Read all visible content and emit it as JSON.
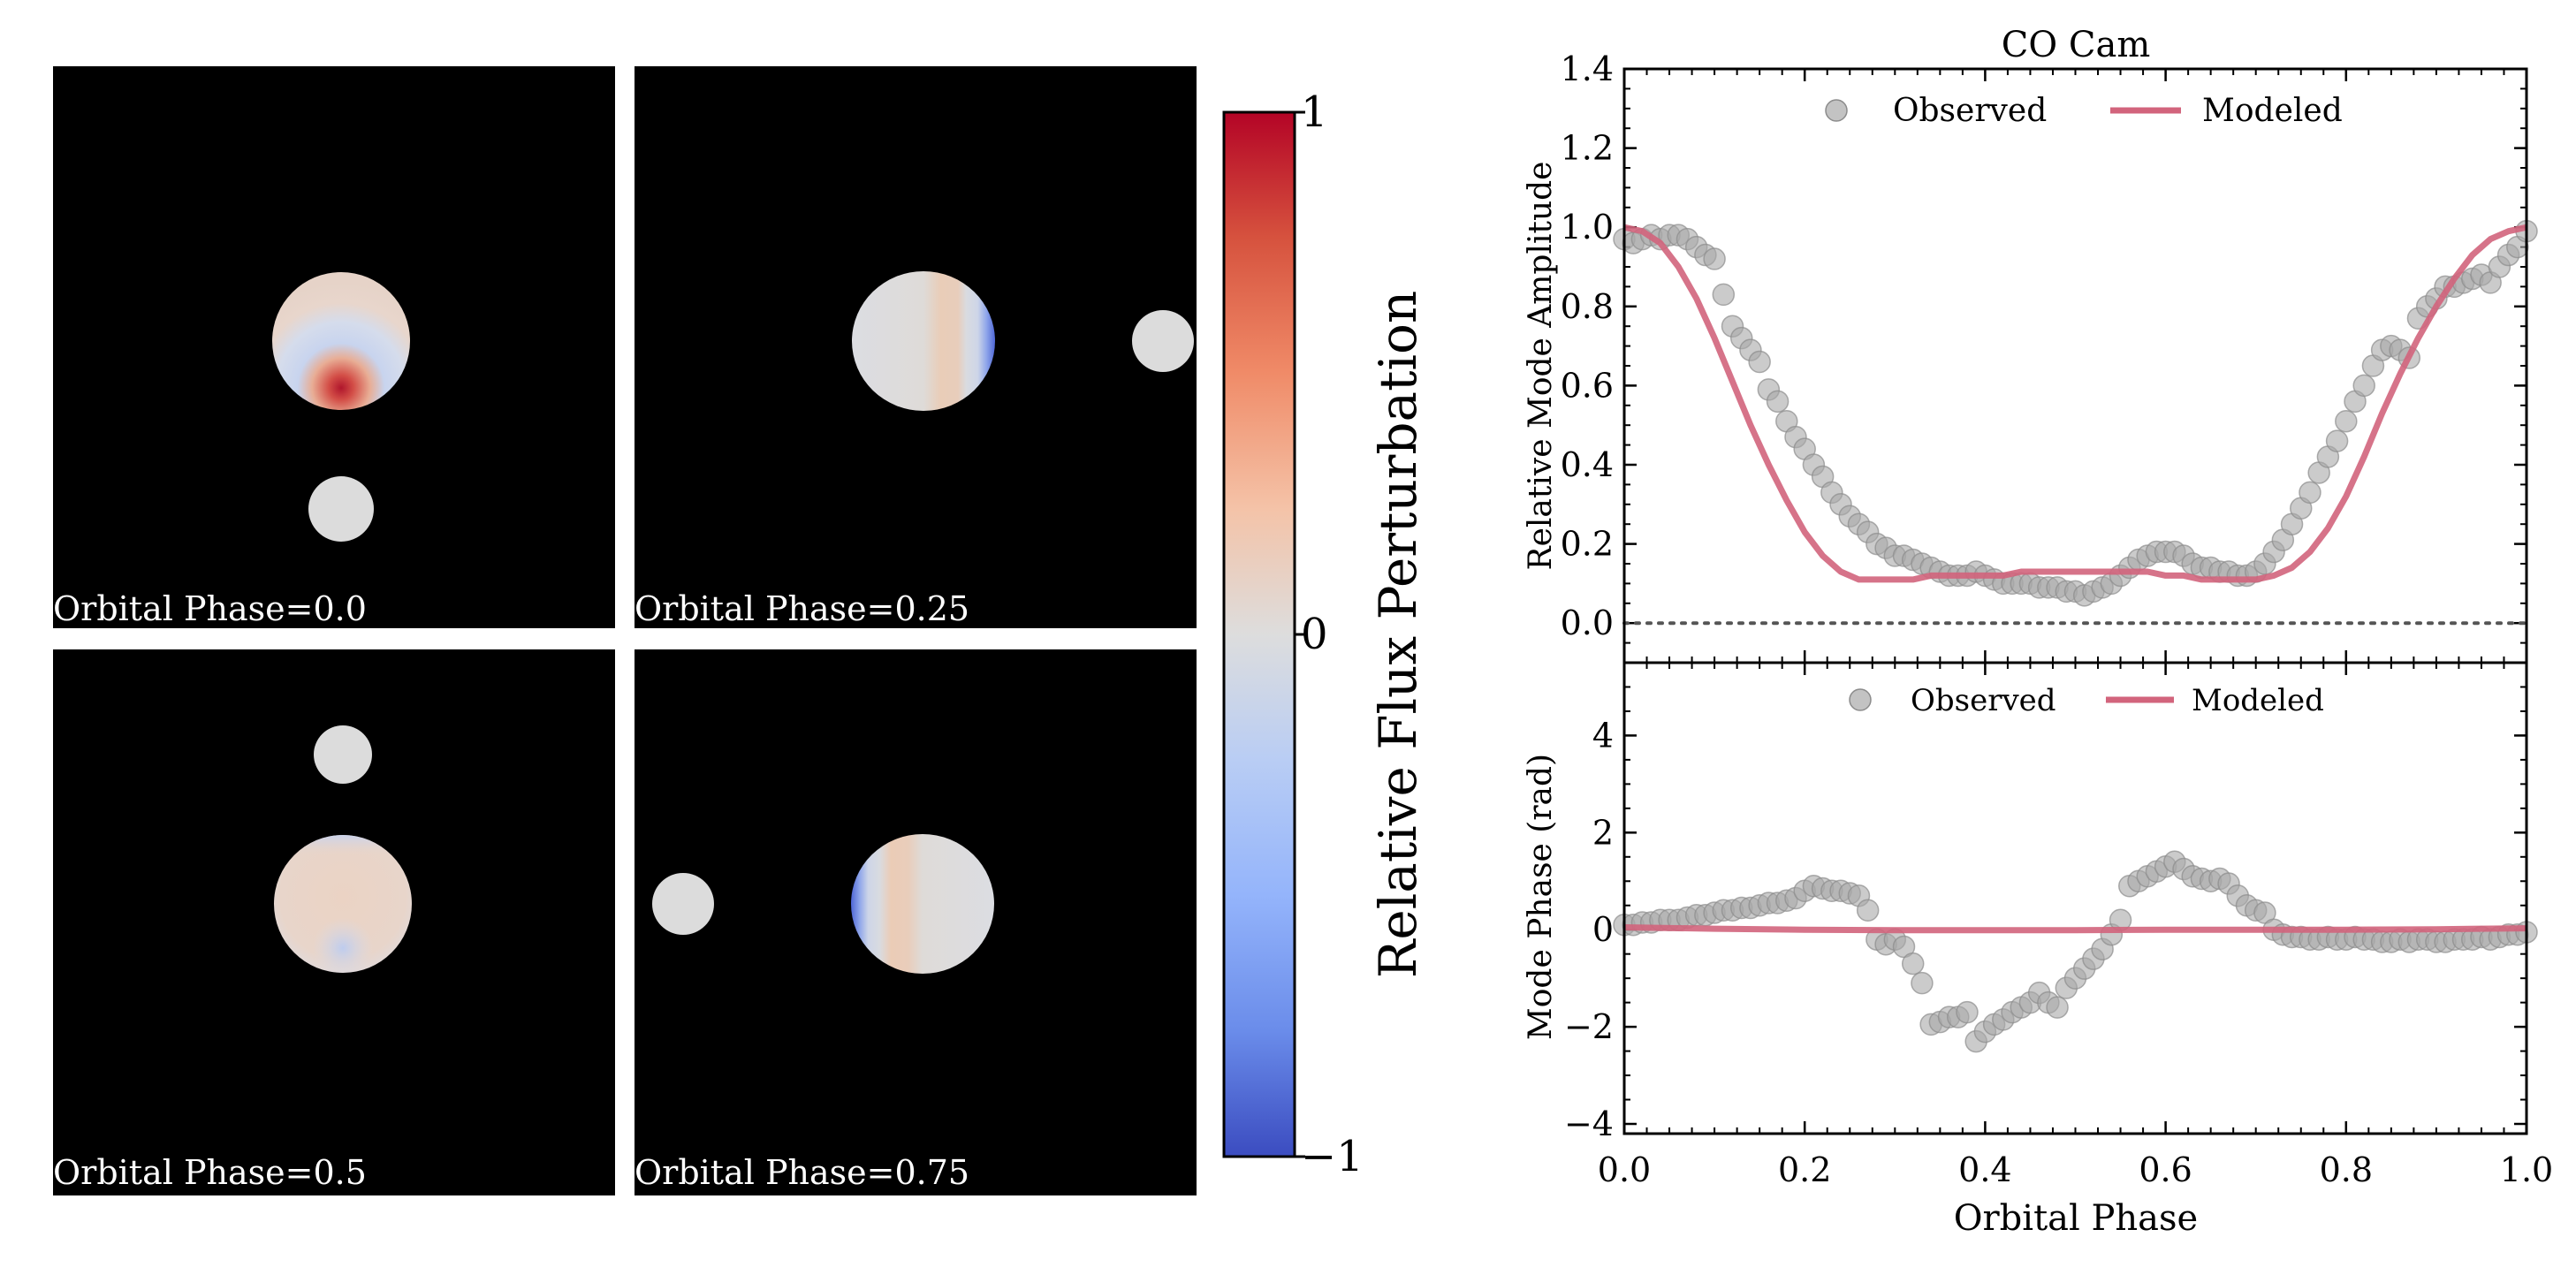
{
  "chart_data": [
    {
      "type": "image-panels",
      "panels": [
        {
          "label": "Orbital Phase=0.0",
          "phase": 0.0
        },
        {
          "label": "Orbital Phase=0.25",
          "phase": 0.25
        },
        {
          "label": "Orbital Phase=0.5",
          "phase": 0.5
        },
        {
          "label": "Orbital Phase=0.75",
          "phase": 0.75
        }
      ],
      "colorbar": {
        "label": "Relative Flux Perturbation",
        "range": [
          -1,
          1
        ],
        "ticks": [
          {
            "value": 1,
            "label": "1"
          },
          {
            "value": 0,
            "label": "0"
          },
          {
            "value": -1,
            "label": "−1"
          }
        ],
        "colormap": "coolwarm"
      }
    },
    {
      "type": "scatter",
      "title": "CO Cam",
      "ylabel": "Relative Mode Amplitude",
      "xlim": [
        0.0,
        1.0
      ],
      "ylim": [
        -0.1,
        1.4
      ],
      "yticks": [
        0.0,
        0.2,
        0.4,
        0.6,
        0.8,
        1.0,
        1.2,
        1.4
      ],
      "ytick_labels": [
        "0.0",
        "0.2",
        "0.4",
        "0.6",
        "0.8",
        "1.0",
        "1.2",
        "1.4"
      ],
      "legend": [
        "Observed",
        "Modeled"
      ],
      "legend_position": "top-center",
      "reference_line": 0.0,
      "series": [
        {
          "name": "Observed",
          "kind": "points",
          "x": [
            0.0,
            0.01,
            0.02,
            0.03,
            0.04,
            0.05,
            0.06,
            0.07,
            0.08,
            0.09,
            0.1,
            0.11,
            0.12,
            0.13,
            0.14,
            0.15,
            0.16,
            0.17,
            0.18,
            0.19,
            0.2,
            0.21,
            0.22,
            0.23,
            0.24,
            0.25,
            0.26,
            0.27,
            0.28,
            0.29,
            0.3,
            0.31,
            0.32,
            0.33,
            0.34,
            0.35,
            0.36,
            0.37,
            0.38,
            0.39,
            0.4,
            0.41,
            0.42,
            0.43,
            0.44,
            0.45,
            0.46,
            0.47,
            0.48,
            0.49,
            0.5,
            0.51,
            0.52,
            0.53,
            0.54,
            0.55,
            0.56,
            0.57,
            0.58,
            0.59,
            0.6,
            0.61,
            0.62,
            0.63,
            0.64,
            0.65,
            0.66,
            0.67,
            0.68,
            0.69,
            0.7,
            0.71,
            0.72,
            0.73,
            0.74,
            0.75,
            0.76,
            0.77,
            0.78,
            0.79,
            0.8,
            0.81,
            0.82,
            0.83,
            0.84,
            0.85,
            0.86,
            0.87,
            0.88,
            0.89,
            0.9,
            0.91,
            0.92,
            0.93,
            0.94,
            0.95,
            0.96,
            0.97,
            0.98,
            0.99,
            1.0
          ],
          "y": [
            0.97,
            0.96,
            0.97,
            0.98,
            0.97,
            0.98,
            0.98,
            0.97,
            0.95,
            0.93,
            0.92,
            0.83,
            0.75,
            0.72,
            0.69,
            0.66,
            0.59,
            0.56,
            0.51,
            0.47,
            0.44,
            0.4,
            0.37,
            0.33,
            0.3,
            0.27,
            0.25,
            0.23,
            0.2,
            0.19,
            0.17,
            0.17,
            0.16,
            0.15,
            0.14,
            0.13,
            0.12,
            0.12,
            0.12,
            0.13,
            0.12,
            0.11,
            0.1,
            0.1,
            0.1,
            0.1,
            0.09,
            0.09,
            0.09,
            0.08,
            0.08,
            0.07,
            0.08,
            0.09,
            0.1,
            0.12,
            0.14,
            0.16,
            0.17,
            0.18,
            0.18,
            0.18,
            0.17,
            0.15,
            0.14,
            0.14,
            0.13,
            0.13,
            0.12,
            0.12,
            0.13,
            0.15,
            0.18,
            0.21,
            0.25,
            0.29,
            0.33,
            0.38,
            0.42,
            0.46,
            0.51,
            0.56,
            0.6,
            0.65,
            0.69,
            0.7,
            0.69,
            0.67,
            0.77,
            0.8,
            0.82,
            0.85,
            0.85,
            0.86,
            0.87,
            0.88,
            0.86,
            0.9,
            0.93,
            0.95,
            0.99
          ]
        },
        {
          "name": "Modeled",
          "kind": "line",
          "color": "#d2647c",
          "x": [
            0.0,
            0.02,
            0.04,
            0.06,
            0.08,
            0.1,
            0.12,
            0.14,
            0.16,
            0.18,
            0.2,
            0.22,
            0.24,
            0.26,
            0.28,
            0.3,
            0.32,
            0.34,
            0.36,
            0.38,
            0.4,
            0.42,
            0.44,
            0.46,
            0.48,
            0.5,
            0.52,
            0.54,
            0.56,
            0.58,
            0.6,
            0.62,
            0.64,
            0.66,
            0.68,
            0.7,
            0.72,
            0.74,
            0.76,
            0.78,
            0.8,
            0.82,
            0.84,
            0.86,
            0.88,
            0.9,
            0.92,
            0.94,
            0.96,
            0.98,
            1.0
          ],
          "y": [
            1.0,
            0.99,
            0.96,
            0.9,
            0.82,
            0.72,
            0.61,
            0.5,
            0.4,
            0.31,
            0.23,
            0.17,
            0.13,
            0.11,
            0.11,
            0.11,
            0.11,
            0.12,
            0.12,
            0.12,
            0.12,
            0.12,
            0.13,
            0.13,
            0.13,
            0.13,
            0.13,
            0.13,
            0.13,
            0.13,
            0.12,
            0.12,
            0.11,
            0.11,
            0.11,
            0.11,
            0.12,
            0.14,
            0.18,
            0.24,
            0.32,
            0.42,
            0.53,
            0.63,
            0.72,
            0.8,
            0.87,
            0.93,
            0.97,
            0.99,
            1.0
          ]
        }
      ]
    },
    {
      "type": "scatter",
      "ylabel": "Mode Phase (rad)",
      "xlabel": "Orbital Phase",
      "xlim": [
        0.0,
        1.0
      ],
      "ylim": [
        -4.2,
        5.5
      ],
      "xticks": [
        0.0,
        0.2,
        0.4,
        0.6,
        0.8,
        1.0
      ],
      "xtick_labels": [
        "0.0",
        "0.2",
        "0.4",
        "0.6",
        "0.8",
        "1.0"
      ],
      "yticks": [
        -4,
        -2,
        0,
        2,
        4
      ],
      "ytick_labels": [
        "−4",
        "−2",
        "0",
        "2",
        "4"
      ],
      "legend": [
        "Observed",
        "Modeled"
      ],
      "legend_position": "top-center",
      "series": [
        {
          "name": "Observed",
          "kind": "points",
          "x": [
            0.0,
            0.01,
            0.02,
            0.03,
            0.04,
            0.05,
            0.06,
            0.07,
            0.08,
            0.09,
            0.1,
            0.11,
            0.12,
            0.13,
            0.14,
            0.15,
            0.16,
            0.17,
            0.18,
            0.19,
            0.2,
            0.21,
            0.22,
            0.23,
            0.24,
            0.25,
            0.26,
            0.27,
            0.28,
            0.29,
            0.3,
            0.31,
            0.32,
            0.33,
            0.34,
            0.35,
            0.36,
            0.37,
            0.38,
            0.39,
            0.4,
            0.41,
            0.42,
            0.43,
            0.44,
            0.45,
            0.46,
            0.47,
            0.48,
            0.49,
            0.5,
            0.51,
            0.52,
            0.53,
            0.54,
            0.55,
            0.56,
            0.57,
            0.58,
            0.59,
            0.6,
            0.61,
            0.62,
            0.63,
            0.64,
            0.65,
            0.66,
            0.67,
            0.68,
            0.69,
            0.7,
            0.71,
            0.72,
            0.73,
            0.74,
            0.75,
            0.76,
            0.77,
            0.78,
            0.79,
            0.8,
            0.81,
            0.82,
            0.83,
            0.84,
            0.85,
            0.86,
            0.87,
            0.88,
            0.89,
            0.9,
            0.91,
            0.92,
            0.93,
            0.94,
            0.95,
            0.96,
            0.97,
            0.98,
            0.99,
            1.0
          ],
          "y": [
            0.1,
            0.1,
            0.15,
            0.15,
            0.2,
            0.2,
            0.2,
            0.25,
            0.3,
            0.3,
            0.35,
            0.4,
            0.4,
            0.45,
            0.45,
            0.5,
            0.55,
            0.55,
            0.6,
            0.65,
            0.8,
            0.9,
            0.85,
            0.8,
            0.8,
            0.75,
            0.7,
            0.4,
            -0.2,
            -0.3,
            -0.2,
            -0.35,
            -0.7,
            -1.1,
            -1.95,
            -1.9,
            -1.8,
            -1.8,
            -1.7,
            -2.3,
            -2.1,
            -1.95,
            -1.85,
            -1.7,
            -1.6,
            -1.5,
            -1.3,
            -1.5,
            -1.6,
            -1.2,
            -1.0,
            -0.8,
            -0.6,
            -0.4,
            -0.1,
            0.2,
            0.9,
            1.0,
            1.1,
            1.2,
            1.3,
            1.4,
            1.25,
            1.1,
            1.05,
            1.0,
            1.05,
            0.95,
            0.7,
            0.5,
            0.4,
            0.35,
            0.0,
            -0.1,
            -0.15,
            -0.15,
            -0.2,
            -0.2,
            -0.15,
            -0.2,
            -0.2,
            -0.15,
            -0.2,
            -0.2,
            -0.25,
            -0.25,
            -0.2,
            -0.25,
            -0.2,
            -0.2,
            -0.25,
            -0.25,
            -0.2,
            -0.2,
            -0.2,
            -0.15,
            -0.2,
            -0.15,
            -0.1,
            -0.1,
            -0.05
          ]
        },
        {
          "name": "Modeled",
          "kind": "line",
          "color": "#d2647c",
          "x": [
            0.0,
            0.1,
            0.2,
            0.3,
            0.4,
            0.5,
            0.6,
            0.7,
            0.8,
            0.9,
            1.0
          ],
          "y": [
            0.05,
            0.02,
            0.0,
            -0.01,
            -0.01,
            -0.01,
            0.0,
            0.0,
            0.0,
            0.01,
            0.03
          ]
        }
      ]
    }
  ]
}
